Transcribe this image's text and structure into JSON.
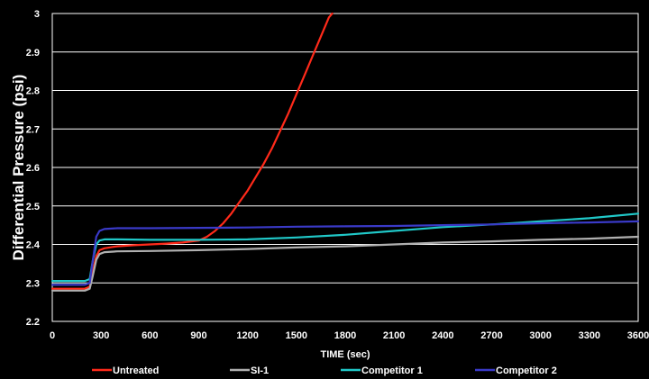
{
  "chart_data": {
    "type": "line",
    "title": "",
    "xlabel": "TIME (sec)",
    "ylabel": "Differential Pressure (psi)",
    "xlim": [
      0,
      3600
    ],
    "ylim": [
      2.2,
      3.0
    ],
    "x_ticks": [
      0,
      300,
      600,
      900,
      1200,
      1500,
      1800,
      2100,
      2400,
      2700,
      3000,
      3300,
      3600
    ],
    "y_ticks": [
      2.2,
      2.3,
      2.4,
      2.5,
      2.6,
      2.7,
      2.8,
      2.9,
      3.0
    ],
    "x_tick_labels": [
      "0",
      "300",
      "600",
      "900",
      "1200",
      "1500",
      "1800",
      "2100",
      "2400",
      "2700",
      "3000",
      "3300",
      "3600"
    ],
    "y_tick_labels": [
      "2.2",
      "2.3",
      "2.4",
      "2.5",
      "2.6",
      "2.7",
      "2.8",
      "2.9",
      "3"
    ],
    "grid": "horizontal",
    "legend_position": "bottom",
    "series": [
      {
        "name": "Untreated",
        "color": "#ff2a1a",
        "x": [
          0,
          100,
          200,
          230,
          250,
          270,
          290,
          320,
          350,
          400,
          500,
          600,
          700,
          800,
          900,
          950,
          1000,
          1050,
          1100,
          1150,
          1200,
          1250,
          1300,
          1350,
          1400,
          1450,
          1500,
          1550,
          1600,
          1650,
          1700,
          1720
        ],
        "y": [
          2.285,
          2.285,
          2.285,
          2.29,
          2.33,
          2.37,
          2.385,
          2.39,
          2.392,
          2.395,
          2.398,
          2.4,
          2.402,
          2.405,
          2.41,
          2.42,
          2.435,
          2.455,
          2.48,
          2.51,
          2.54,
          2.575,
          2.61,
          2.65,
          2.695,
          2.74,
          2.79,
          2.84,
          2.89,
          2.94,
          2.99,
          3.0
        ]
      },
      {
        "name": "SI-1",
        "color": "#b0b0b0",
        "x": [
          0,
          100,
          200,
          230,
          250,
          270,
          290,
          320,
          400,
          600,
          900,
          1200,
          1500,
          1800,
          2100,
          2400,
          2700,
          3000,
          3300,
          3600
        ],
        "y": [
          2.28,
          2.28,
          2.28,
          2.285,
          2.32,
          2.36,
          2.375,
          2.38,
          2.382,
          2.383,
          2.385,
          2.388,
          2.392,
          2.395,
          2.4,
          2.405,
          2.408,
          2.412,
          2.415,
          2.42
        ]
      },
      {
        "name": "Competitor 1",
        "color": "#20c8c8",
        "x": [
          0,
          100,
          200,
          230,
          250,
          270,
          290,
          320,
          400,
          600,
          900,
          1200,
          1500,
          1800,
          2100,
          2400,
          2700,
          3000,
          3300,
          3600
        ],
        "y": [
          2.305,
          2.305,
          2.305,
          2.31,
          2.36,
          2.4,
          2.41,
          2.413,
          2.413,
          2.412,
          2.412,
          2.413,
          2.418,
          2.425,
          2.435,
          2.445,
          2.452,
          2.46,
          2.468,
          2.48
        ]
      },
      {
        "name": "Competitor 2",
        "color": "#3a3ac8",
        "x": [
          0,
          100,
          200,
          230,
          250,
          270,
          290,
          320,
          400,
          600,
          900,
          1200,
          1500,
          1800,
          2100,
          2400,
          2700,
          3000,
          3300,
          3600
        ],
        "y": [
          2.295,
          2.295,
          2.295,
          2.3,
          2.36,
          2.42,
          2.435,
          2.44,
          2.442,
          2.442,
          2.443,
          2.444,
          2.446,
          2.447,
          2.448,
          2.45,
          2.452,
          2.455,
          2.457,
          2.46
        ]
      }
    ]
  }
}
